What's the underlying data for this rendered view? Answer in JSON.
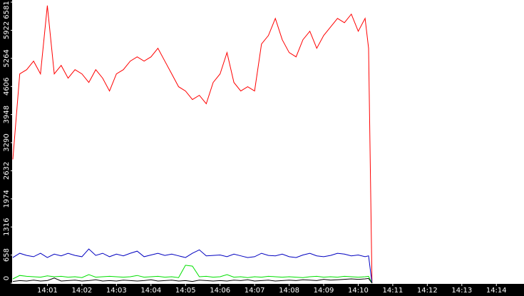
{
  "chart_data": {
    "type": "line",
    "x": [
      0,
      0.2,
      0.4,
      0.6,
      0.8,
      1,
      1.2,
      1.4,
      1.6,
      1.8,
      2,
      2.2,
      2.4,
      2.6,
      2.8,
      3,
      3.2,
      3.4,
      3.6,
      3.8,
      4,
      4.2,
      4.4,
      4.6,
      4.8,
      5,
      5.2,
      5.4,
      5.6,
      5.8,
      6,
      6.2,
      6.4,
      6.6,
      6.8,
      7,
      7.2,
      7.4,
      7.6,
      7.8,
      8,
      8.2,
      8.4,
      8.6,
      8.8,
      9,
      9.2,
      9.4,
      9.6,
      9.8,
      10,
      10.2,
      10.3,
      10.4
    ],
    "series": [
      {
        "color": "#ff0000",
        "values": [
          2900,
          4900,
          5000,
          5200,
          4900,
          6500,
          4900,
          5100,
          4800,
          5000,
          4900,
          4700,
          5000,
          4800,
          4500,
          4900,
          5000,
          5200,
          5300,
          5200,
          5300,
          5500,
          5200,
          4900,
          4600,
          4500,
          4300,
          4400,
          4200,
          4700,
          4900,
          5400,
          4700,
          4500,
          4600,
          4500,
          5600,
          5800,
          6200,
          5700,
          5400,
          5300,
          5700,
          5900,
          5500,
          5800,
          6000,
          6200,
          6100,
          6300,
          5900,
          6200,
          5500,
          0
        ]
      },
      {
        "color": "#0000c0",
        "values": [
          600,
          700,
          650,
          620,
          700,
          600,
          680,
          640,
          700,
          650,
          620,
          800,
          650,
          700,
          620,
          680,
          640,
          700,
          750,
          620,
          660,
          700,
          650,
          680,
          640,
          600,
          700,
          780,
          640,
          650,
          660,
          620,
          680,
          640,
          600,
          620,
          700,
          650,
          640,
          680,
          620,
          600,
          660,
          700,
          640,
          620,
          650,
          700,
          680,
          640,
          660,
          620,
          640,
          0
        ]
      },
      {
        "color": "#00e000",
        "values": [
          100,
          180,
          160,
          150,
          140,
          170,
          150,
          160,
          140,
          150,
          130,
          200,
          140,
          150,
          160,
          150,
          140,
          150,
          180,
          140,
          150,
          160,
          140,
          150,
          130,
          420,
          400,
          150,
          160,
          140,
          150,
          200,
          140,
          150,
          130,
          150,
          140,
          160,
          150,
          140,
          150,
          140,
          130,
          150,
          160,
          140,
          150,
          140,
          160,
          150,
          140,
          150,
          160,
          0
        ]
      },
      {
        "color": "#000000",
        "values": [
          40,
          60,
          50,
          70,
          50,
          60,
          120,
          50,
          60,
          70,
          50,
          60,
          80,
          50,
          60,
          50,
          70,
          60,
          50,
          60,
          80,
          50,
          60,
          70,
          50,
          60,
          40,
          70,
          60,
          50,
          60,
          50,
          70,
          60,
          80,
          50,
          60,
          70,
          50,
          60,
          70,
          60,
          80,
          70,
          60,
          90,
          70,
          80,
          90,
          100,
          90,
          100,
          110,
          0
        ]
      }
    ],
    "xlim": [
      0,
      14.8
    ],
    "xticks": [
      {
        "value": 1,
        "label": "14:01"
      },
      {
        "value": 2,
        "label": "14:02"
      },
      {
        "value": 3,
        "label": "14:03"
      },
      {
        "value": 4,
        "label": "14:04"
      },
      {
        "value": 5,
        "label": "14:05"
      },
      {
        "value": 6,
        "label": "14:06"
      },
      {
        "value": 7,
        "label": "14:07"
      },
      {
        "value": 8,
        "label": "14:08"
      },
      {
        "value": 9,
        "label": "14:09"
      },
      {
        "value": 10,
        "label": "14:10"
      },
      {
        "value": 11,
        "label": "14:11"
      },
      {
        "value": 12,
        "label": "14:12"
      },
      {
        "value": 13,
        "label": "14:13"
      },
      {
        "value": 14,
        "label": "14:14"
      }
    ],
    "ylim": [
      0,
      6581
    ],
    "yticks": [
      0,
      658,
      1316,
      1974,
      2632,
      3290,
      3948,
      4606,
      5264,
      5922,
      6581
    ]
  }
}
